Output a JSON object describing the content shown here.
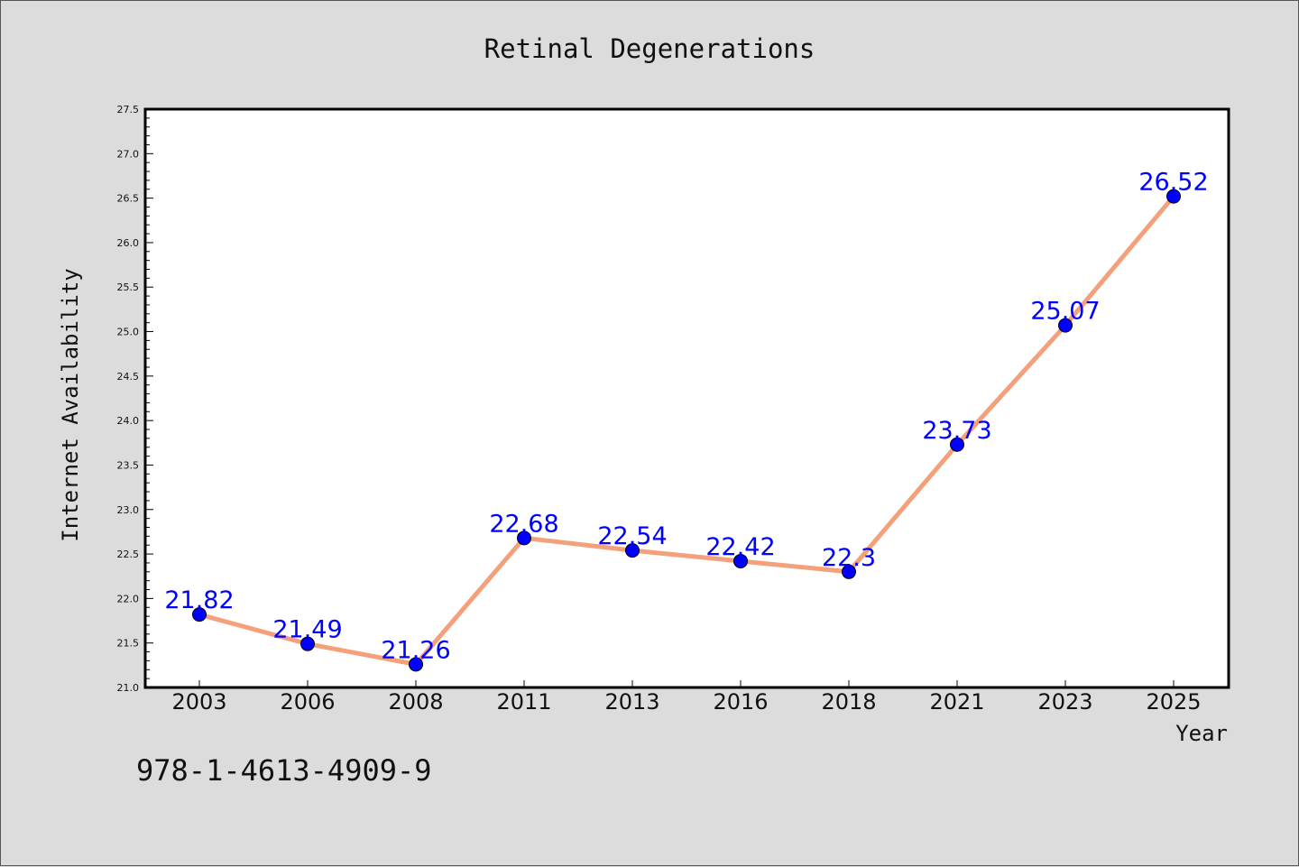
{
  "chart_data": {
    "type": "line",
    "title": "Retinal Degenerations",
    "xlabel": "Year",
    "ylabel": "Internet Availability",
    "categories": [
      "2003",
      "2006",
      "2008",
      "2011",
      "2013",
      "2016",
      "2018",
      "2021",
      "2023",
      "2025"
    ],
    "series": [
      {
        "values": [
          21.82,
          21.49,
          21.26,
          22.68,
          22.54,
          22.42,
          22.3,
          23.73,
          25.07,
          26.52
        ],
        "data_labels": [
          "21.82",
          "21.49",
          "21.26",
          "22.68",
          "22.54",
          "22.42",
          "22.3",
          "23.73",
          "25.07",
          "26.52"
        ]
      }
    ],
    "ylim": [
      21.0,
      27.5
    ],
    "yticks": [
      "21.0",
      "21.5",
      "22.0",
      "22.5",
      "23.0",
      "23.5",
      "24.0",
      "24.5",
      "25.0",
      "25.5",
      "26.0",
      "26.5",
      "27.0",
      "27.5"
    ],
    "grid": false,
    "legend": "none",
    "colors": {
      "background": "#dcdcdc",
      "plot_background": "#ffffff",
      "line": "#f4a07a",
      "marker": "#0000ff",
      "data_label": "#0000ff"
    }
  },
  "footnote": "978-1-4613-4909-9"
}
